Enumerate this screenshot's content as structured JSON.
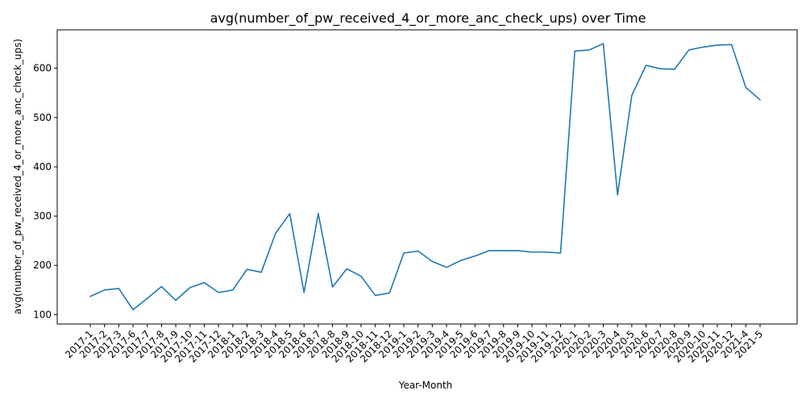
{
  "chart_data": {
    "type": "line",
    "title": "avg(number_of_pw_received_4_or_more_anc_check_ups) over Time",
    "xlabel": "Year-Month",
    "ylabel": "avg(number_of_pw_received_4_or_more_anc_check_ups)",
    "categories": [
      "2017-1",
      "2017-2",
      "2017-3",
      "2017-6",
      "2017-7",
      "2017-8",
      "2017-9",
      "2017-10",
      "2017-11",
      "2017-12",
      "2018-1",
      "2018-2",
      "2018-3",
      "2018-4",
      "2018-5",
      "2018-6",
      "2018-7",
      "2018-8",
      "2018-9",
      "2018-10",
      "2018-11",
      "2018-12",
      "2019-1",
      "2019-2",
      "2019-3",
      "2019-4",
      "2019-5",
      "2019-6",
      "2019-7",
      "2019-8",
      "2019-9",
      "2019-10",
      "2019-11",
      "2019-12",
      "2020-1",
      "2020-2",
      "2020-3",
      "2020-4",
      "2020-5",
      "2020-6",
      "2020-7",
      "2020-8",
      "2020-9",
      "2020-10",
      "2020-11",
      "2020-12",
      "2021-4",
      "2021-5"
    ],
    "values": [
      137,
      150,
      153,
      110,
      133,
      157,
      129,
      155,
      165,
      145,
      150,
      192,
      186,
      265,
      305,
      145,
      305,
      156,
      193,
      178,
      139,
      144,
      225,
      229,
      208,
      196,
      210,
      219,
      230,
      230,
      230,
      227,
      227,
      225,
      635,
      637,
      650,
      343,
      545,
      606,
      599,
      598,
      637,
      643,
      647,
      648,
      561,
      536
    ],
    "yticks": [
      100,
      200,
      300,
      400,
      500,
      600
    ],
    "ylim": [
      81,
      678
    ],
    "grid": false,
    "color": "#1f77b4"
  }
}
